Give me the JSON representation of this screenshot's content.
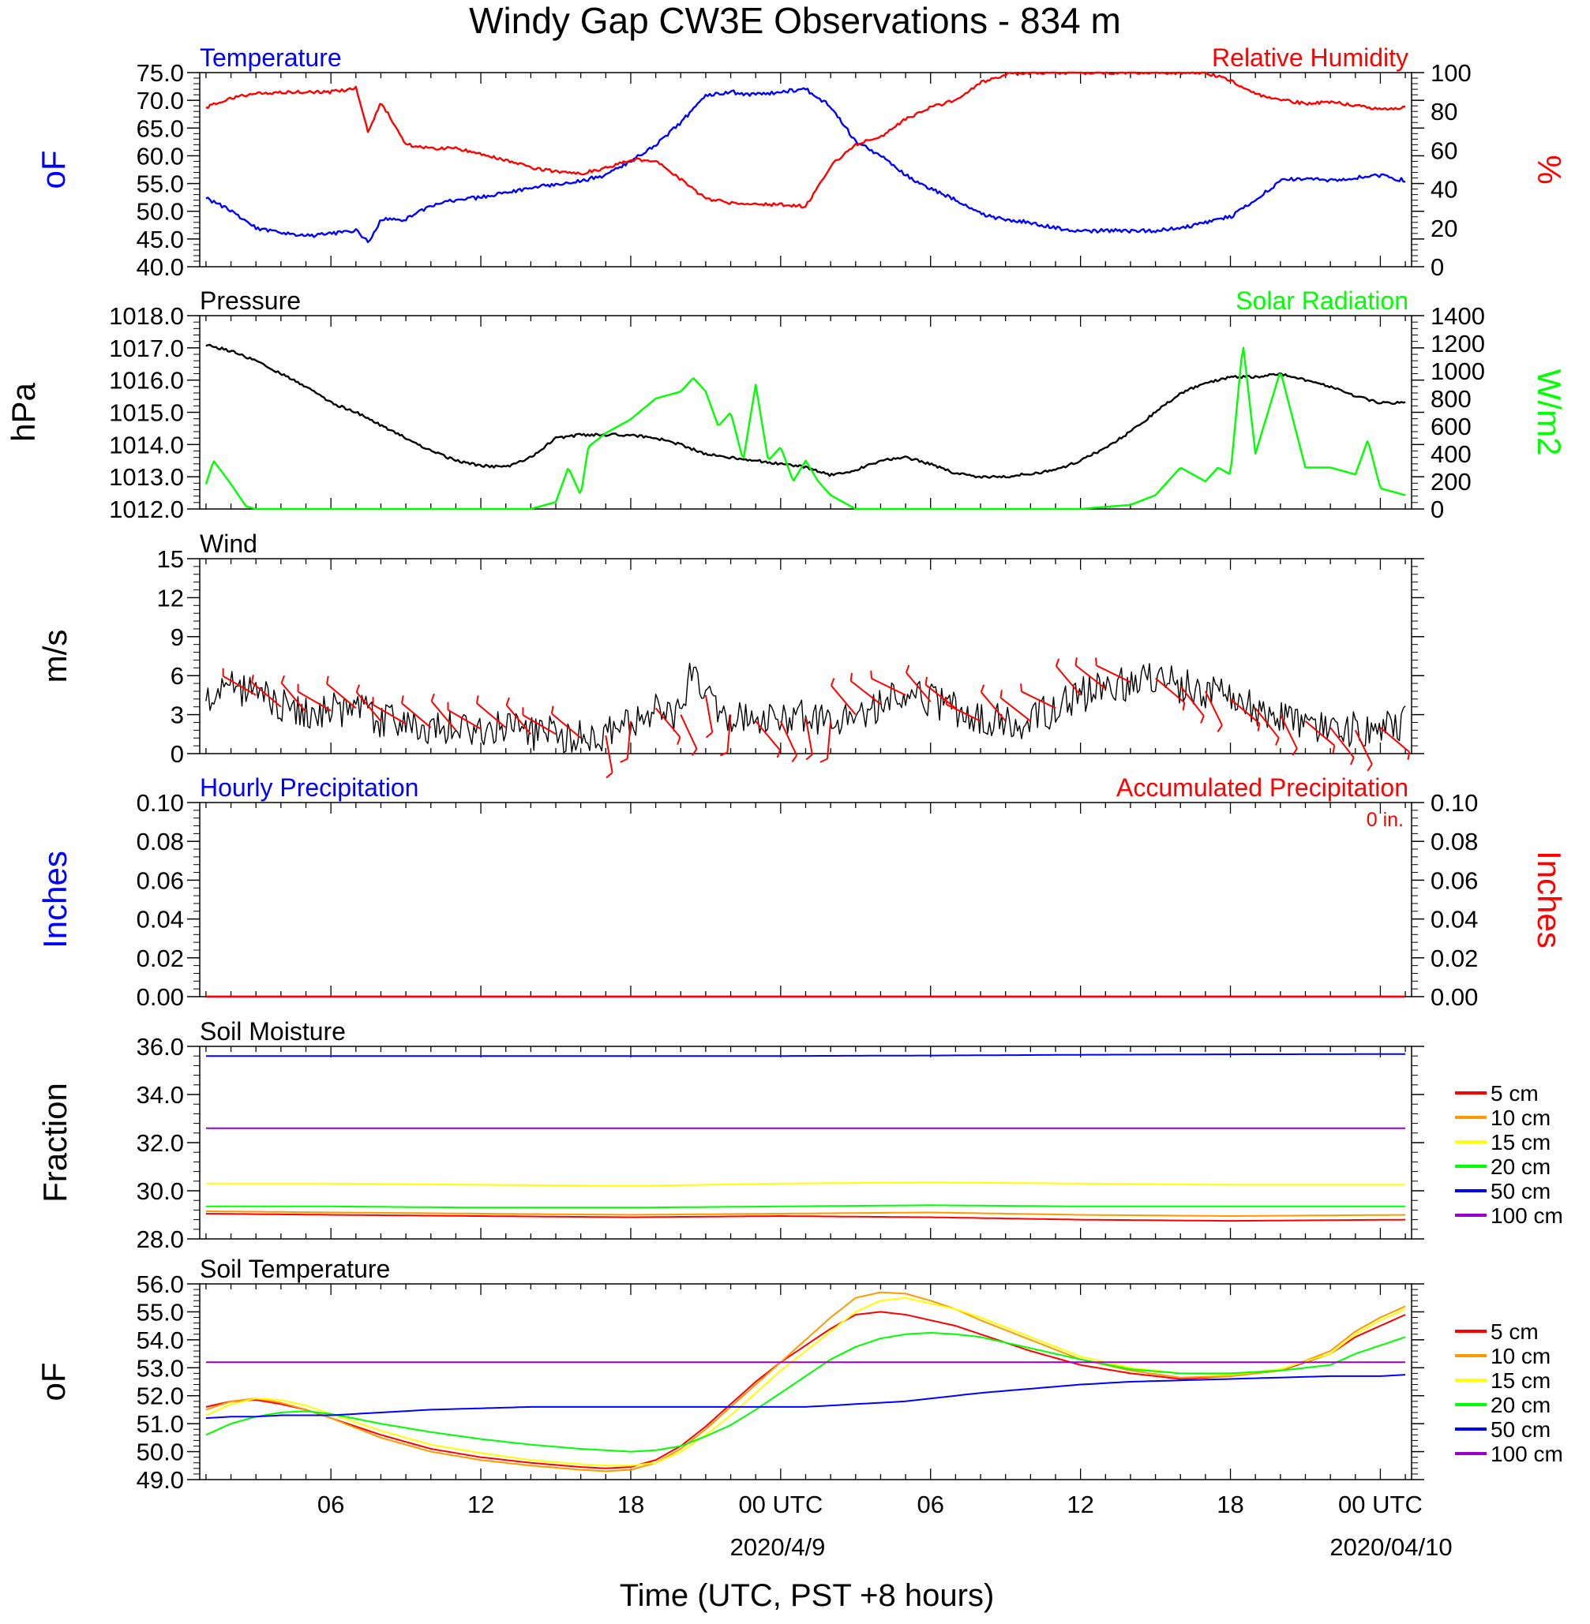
{
  "title": "Windy Gap CW3E Observations - 834 m",
  "colors": {
    "temperature": "#0000ff",
    "humidity": "#ff0000",
    "pressure": "#000000",
    "solar": "#00ff00",
    "wind": "#000000",
    "barbs": "#ff0000",
    "hourly_precip": "#0000ff",
    "accum_precip": "#ff0000",
    "depth_5": "#ff0000",
    "depth_10": "#ff9900",
    "depth_15": "#ffff00",
    "depth_20": "#00ff00",
    "depth_50": "#0000ff",
    "depth_100": "#9900cc"
  },
  "x_axis": {
    "ticks": [
      "06",
      "12",
      "18",
      "00 UTC",
      "06",
      "12",
      "18",
      "00 UTC"
    ],
    "dates": [
      "2020/4/9",
      "2020/04/10"
    ],
    "label": "Time (UTC, PST +8 hours)"
  },
  "chart_data": [
    {
      "type": "line",
      "left_title": "Temperature",
      "right_title": "Relative Humidity",
      "ylabel_left": "oF",
      "ylabel_right": "%",
      "ylim_left": [
        40,
        75
      ],
      "ylim_right": [
        0,
        100
      ],
      "yticks_left": [
        "40.0",
        "45.0",
        "50.0",
        "55.0",
        "60.0",
        "65.0",
        "70.0",
        "75.0"
      ],
      "yticks_right": [
        "0",
        "20",
        "40",
        "60",
        "80",
        "100"
      ],
      "x_hours": [
        1,
        2,
        3,
        4,
        5,
        6,
        7,
        7.5,
        8,
        9,
        10,
        11,
        12,
        13,
        14,
        15,
        16,
        17,
        18,
        19,
        20,
        21,
        22,
        23,
        24,
        25,
        26,
        27,
        28,
        29,
        30,
        31,
        32,
        33,
        34,
        35,
        36,
        37,
        38,
        39,
        40,
        41,
        42,
        43,
        44,
        45,
        46,
        47,
        48,
        49
      ],
      "series": [
        {
          "name": "Temperature",
          "axis": "left",
          "values": [
            52.5,
            50,
            47,
            46,
            45.5,
            46,
            46.5,
            44.5,
            48.5,
            48.5,
            51,
            52,
            52.5,
            53.5,
            54,
            55,
            55.5,
            56.5,
            59,
            62,
            66,
            71,
            71.5,
            71,
            71.5,
            72,
            69,
            62.5,
            60,
            56.5,
            54,
            52,
            49.5,
            48.5,
            48,
            47,
            46.5,
            46.5,
            46.5,
            46.5,
            47,
            48,
            49,
            52,
            55.5,
            56,
            55.5,
            56,
            56.5,
            55.5
          ]
        },
        {
          "name": "Relative Humidity",
          "axis": "right",
          "values": [
            82,
            87,
            89,
            90,
            90,
            90,
            92,
            69,
            85,
            63,
            61,
            61,
            58,
            55,
            51,
            49,
            48,
            51,
            55,
            55,
            45,
            35,
            33,
            32,
            32,
            31,
            52,
            63,
            67,
            76,
            82,
            86,
            95,
            99,
            100,
            100,
            100,
            100,
            100,
            100,
            100,
            100,
            96,
            89,
            86,
            84,
            85,
            83,
            81,
            82
          ]
        }
      ]
    },
    {
      "type": "line",
      "left_title": "Pressure",
      "right_title": "Solar Radiation",
      "ylabel_left": "hPa",
      "ylabel_right": "W/m2",
      "ylim_left": [
        1012,
        1018
      ],
      "ylim_right": [
        0,
        1400
      ],
      "yticks_left": [
        "1012.0",
        "1013.0",
        "1014.0",
        "1015.0",
        "1016.0",
        "1017.0",
        "1018.0"
      ],
      "yticks_right": [
        "0",
        "200",
        "400",
        "600",
        "800",
        "1000",
        "1200",
        "1400"
      ],
      "series": [
        {
          "name": "Pressure",
          "axis": "left",
          "x_hours": [
            1,
            2,
            3,
            4,
            5,
            6,
            7,
            8,
            9,
            10,
            11,
            12,
            13,
            14,
            15,
            16,
            17,
            18,
            19,
            20,
            21,
            22,
            23,
            24,
            25,
            26,
            27,
            28,
            29,
            30,
            31,
            32,
            33,
            34,
            35,
            36,
            37,
            38,
            39,
            40,
            41,
            42,
            43,
            44,
            45,
            46,
            47,
            48,
            49
          ],
          "values": [
            1017.1,
            1016.9,
            1016.6,
            1016.2,
            1015.8,
            1015.3,
            1015.0,
            1014.6,
            1014.2,
            1013.8,
            1013.5,
            1013.35,
            1013.3,
            1013.6,
            1014.2,
            1014.3,
            1014.3,
            1014.3,
            1014.2,
            1014.0,
            1013.7,
            1013.6,
            1013.5,
            1013.4,
            1013.3,
            1013.05,
            1013.2,
            1013.5,
            1013.6,
            1013.4,
            1013.1,
            1013.0,
            1013.0,
            1013.1,
            1013.2,
            1013.5,
            1013.9,
            1014.4,
            1015.0,
            1015.6,
            1015.9,
            1016.1,
            1016.1,
            1016.2,
            1016.0,
            1015.8,
            1015.5,
            1015.3,
            1015.3
          ]
        },
        {
          "name": "Solar Radiation",
          "axis": "right",
          "x_hours": [
            1,
            1.3,
            2,
            2.6,
            3,
            10,
            14,
            15,
            15.5,
            16,
            16.3,
            17,
            18,
            19,
            20,
            20.5,
            21,
            21.5,
            22,
            22.5,
            23,
            23.5,
            24,
            24.5,
            25,
            25.5,
            26,
            27,
            36,
            38,
            39,
            40,
            41,
            41.5,
            42,
            42.5,
            43,
            44,
            45,
            46,
            47,
            47.5,
            48,
            49
          ],
          "values": [
            180,
            350,
            180,
            20,
            0,
            0,
            0,
            50,
            300,
            100,
            450,
            550,
            650,
            800,
            850,
            950,
            850,
            600,
            700,
            350,
            900,
            350,
            450,
            200,
            350,
            200,
            100,
            0,
            0,
            30,
            100,
            300,
            200,
            300,
            250,
            1200,
            400,
            1000,
            300,
            300,
            250,
            500,
            150,
            100
          ]
        }
      ]
    },
    {
      "type": "line",
      "left_title": "Wind",
      "ylabel_left": "m/s",
      "ylim_left": [
        0,
        15
      ],
      "yticks_left": [
        "0",
        "3",
        "6",
        "9",
        "12",
        "15"
      ],
      "x_hours": [
        1,
        2,
        3,
        4,
        5,
        6,
        7,
        8,
        9,
        10,
        11,
        12,
        13,
        14,
        15,
        16,
        17,
        18,
        19,
        20,
        20.5,
        21,
        22,
        23,
        24,
        25,
        26,
        27,
        28,
        29,
        30,
        31,
        32,
        33,
        34,
        35,
        36,
        37,
        38,
        39,
        40,
        41,
        42,
        43,
        44,
        45,
        46,
        47,
        48,
        49
      ],
      "series": [
        {
          "name": "Wind",
          "axis": "left",
          "values": [
            4,
            5.2,
            4.5,
            3.6,
            3.2,
            3.3,
            3.5,
            2.5,
            2.3,
            2,
            1.8,
            1.9,
            2,
            1.5,
            1.5,
            1.2,
            1.4,
            2.5,
            3.5,
            3,
            7.5,
            4.5,
            3,
            2.5,
            2.5,
            2.8,
            2.5,
            3,
            3.8,
            4.5,
            4,
            3.5,
            2.5,
            2.5,
            2.5,
            3.5,
            4.5,
            5,
            5.5,
            5.8,
            5.2,
            4.8,
            4.2,
            3.5,
            3,
            2.5,
            2,
            1.8,
            2,
            2.3
          ]
        }
      ]
    },
    {
      "type": "line",
      "left_title": "Hourly Precipitation",
      "right_title": "Accumulated Precipitation",
      "annotation": "0 in.",
      "ylabel_left": "Inches",
      "ylabel_right": "Inches",
      "ylim_left": [
        0,
        0.1
      ],
      "ylim_right": [
        0,
        0.1
      ],
      "yticks_left": [
        "0.00",
        "0.02",
        "0.04",
        "0.06",
        "0.08",
        "0.10"
      ],
      "yticks_right": [
        "0.00",
        "0.02",
        "0.04",
        "0.06",
        "0.08",
        "0.10"
      ],
      "x_hours": [
        1,
        49
      ],
      "series": [
        {
          "name": "Hourly Precipitation",
          "axis": "left",
          "values": [
            0,
            0
          ]
        },
        {
          "name": "Accumulated Precipitation",
          "axis": "right",
          "values": [
            0,
            0
          ]
        }
      ]
    },
    {
      "type": "line",
      "left_title": "Soil Moisture",
      "ylabel_left": "Fraction",
      "ylim_left": [
        28,
        36
      ],
      "yticks_left": [
        "28.0",
        "30.0",
        "32.0",
        "34.0",
        "36.0"
      ],
      "legend": [
        "5 cm",
        "10 cm",
        "15 cm",
        "20 cm",
        "50 cm",
        "100 cm"
      ],
      "x_hours": [
        1,
        6,
        12,
        18,
        24,
        30,
        36,
        42,
        49
      ],
      "series": [
        {
          "name": "5 cm",
          "axis": "left",
          "values": [
            29.05,
            29.0,
            28.95,
            28.9,
            28.95,
            28.9,
            28.8,
            28.75,
            28.8
          ]
        },
        {
          "name": "10 cm",
          "axis": "left",
          "values": [
            29.15,
            29.1,
            29.05,
            29.0,
            29.05,
            29.1,
            29.0,
            28.95,
            29.0
          ]
        },
        {
          "name": "15 cm",
          "axis": "left",
          "values": [
            30.3,
            30.3,
            30.25,
            30.2,
            30.3,
            30.35,
            30.3,
            30.25,
            30.25
          ]
        },
        {
          "name": "20 cm",
          "axis": "left",
          "values": [
            29.35,
            29.35,
            29.3,
            29.3,
            29.35,
            29.4,
            29.35,
            29.35,
            29.35
          ]
        },
        {
          "name": "50 cm",
          "axis": "left",
          "values": [
            35.6,
            35.6,
            35.6,
            35.6,
            35.6,
            35.62,
            35.65,
            35.67,
            35.68
          ]
        },
        {
          "name": "100 cm",
          "axis": "left",
          "values": [
            32.6,
            32.6,
            32.6,
            32.6,
            32.6,
            32.6,
            32.6,
            32.6,
            32.6
          ]
        }
      ]
    },
    {
      "type": "line",
      "left_title": "Soil Temperature",
      "ylabel_left": "oF",
      "ylim_left": [
        49,
        56
      ],
      "yticks_left": [
        "49.0",
        "50.0",
        "51.0",
        "52.0",
        "53.0",
        "54.0",
        "55.0",
        "56.0"
      ],
      "legend": [
        "5 cm",
        "10 cm",
        "15 cm",
        "20 cm",
        "50 cm",
        "100 cm"
      ],
      "x_hours": [
        1,
        2,
        3,
        4,
        5,
        6,
        8,
        10,
        12,
        14,
        16,
        17,
        18,
        19,
        20,
        21,
        22,
        23,
        24,
        25,
        26,
        27,
        28,
        29,
        30,
        31,
        32,
        34,
        36,
        38,
        40,
        42,
        44,
        46,
        47,
        48,
        49
      ],
      "series": [
        {
          "name": "5 cm",
          "axis": "left",
          "values": [
            51.6,
            51.8,
            51.85,
            51.7,
            51.5,
            51.2,
            50.6,
            50.1,
            49.8,
            49.6,
            49.45,
            49.4,
            49.45,
            49.7,
            50.2,
            50.9,
            51.7,
            52.5,
            53.2,
            53.8,
            54.4,
            54.9,
            55.0,
            54.9,
            54.7,
            54.5,
            54.2,
            53.6,
            53.1,
            52.8,
            52.6,
            52.7,
            52.9,
            53.5,
            54.1,
            54.5,
            54.9
          ]
        },
        {
          "name": "10 cm",
          "axis": "left",
          "values": [
            51.5,
            51.8,
            51.9,
            51.75,
            51.5,
            51.2,
            50.5,
            50.0,
            49.7,
            49.5,
            49.35,
            49.3,
            49.35,
            49.6,
            50.1,
            50.8,
            51.6,
            52.4,
            53.2,
            54.0,
            54.8,
            55.5,
            55.7,
            55.65,
            55.4,
            55.1,
            54.7,
            54.0,
            53.3,
            52.9,
            52.65,
            52.7,
            52.9,
            53.6,
            54.3,
            54.8,
            55.2
          ]
        },
        {
          "name": "15 cm",
          "axis": "left",
          "values": [
            51.3,
            51.7,
            51.9,
            51.85,
            51.65,
            51.35,
            50.75,
            50.25,
            49.95,
            49.7,
            49.55,
            49.5,
            49.5,
            49.6,
            50.0,
            50.6,
            51.3,
            52.1,
            52.9,
            53.6,
            54.3,
            55.0,
            55.4,
            55.5,
            55.3,
            55.1,
            54.8,
            54.1,
            53.4,
            53.0,
            52.8,
            52.75,
            52.95,
            53.5,
            54.2,
            54.7,
            55.1
          ]
        },
        {
          "name": "20 cm",
          "axis": "left",
          "values": [
            50.6,
            51.0,
            51.25,
            51.4,
            51.45,
            51.35,
            51.0,
            50.7,
            50.45,
            50.25,
            50.1,
            50.05,
            50.0,
            50.05,
            50.2,
            50.55,
            50.95,
            51.5,
            52.1,
            52.7,
            53.3,
            53.75,
            54.05,
            54.2,
            54.25,
            54.2,
            54.1,
            53.7,
            53.3,
            52.95,
            52.8,
            52.8,
            52.9,
            53.1,
            53.5,
            53.8,
            54.1
          ]
        },
        {
          "name": "50 cm",
          "axis": "left",
          "values": [
            51.2,
            51.25,
            51.25,
            51.3,
            51.3,
            51.3,
            51.4,
            51.5,
            51.55,
            51.6,
            51.6,
            51.6,
            51.6,
            51.6,
            51.6,
            51.6,
            51.6,
            51.6,
            51.6,
            51.6,
            51.65,
            51.7,
            51.75,
            51.8,
            51.9,
            52.0,
            52.1,
            52.25,
            52.4,
            52.5,
            52.55,
            52.6,
            52.65,
            52.7,
            52.7,
            52.7,
            52.75
          ]
        },
        {
          "name": "100 cm",
          "axis": "left",
          "values": [
            53.2,
            53.2,
            53.2,
            53.2,
            53.2,
            53.2,
            53.2,
            53.2,
            53.2,
            53.2,
            53.2,
            53.2,
            53.2,
            53.2,
            53.2,
            53.2,
            53.2,
            53.2,
            53.2,
            53.2,
            53.2,
            53.2,
            53.2,
            53.2,
            53.2,
            53.2,
            53.2,
            53.2,
            53.2,
            53.2,
            53.2,
            53.2,
            53.2,
            53.2,
            53.2,
            53.2,
            53.2
          ]
        }
      ]
    }
  ]
}
